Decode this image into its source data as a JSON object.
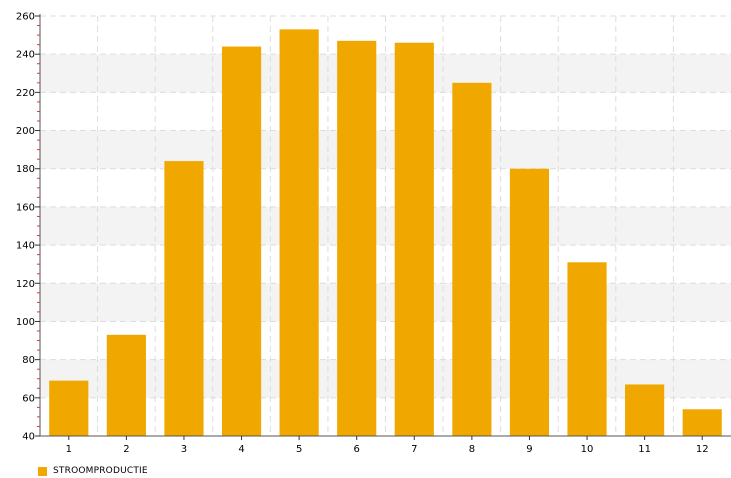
{
  "chart_data": {
    "type": "bar",
    "categories": [
      "1",
      "2",
      "3",
      "4",
      "5",
      "6",
      "7",
      "8",
      "9",
      "10",
      "11",
      "12"
    ],
    "series": [
      {
        "name": "STROOMPRODUCTIE",
        "values": [
          69,
          93,
          184,
          244,
          253,
          247,
          246,
          225,
          180,
          131,
          67,
          54
        ],
        "color": "#f0a800"
      }
    ],
    "ylim": [
      40,
      260
    ],
    "yticks": [
      "40",
      "60",
      "80",
      "100",
      "120",
      "140",
      "160",
      "180",
      "200",
      "220",
      "240",
      "260"
    ],
    "grid": true,
    "band_color": "#f3f3f3",
    "legend_position": "bottom-left"
  }
}
